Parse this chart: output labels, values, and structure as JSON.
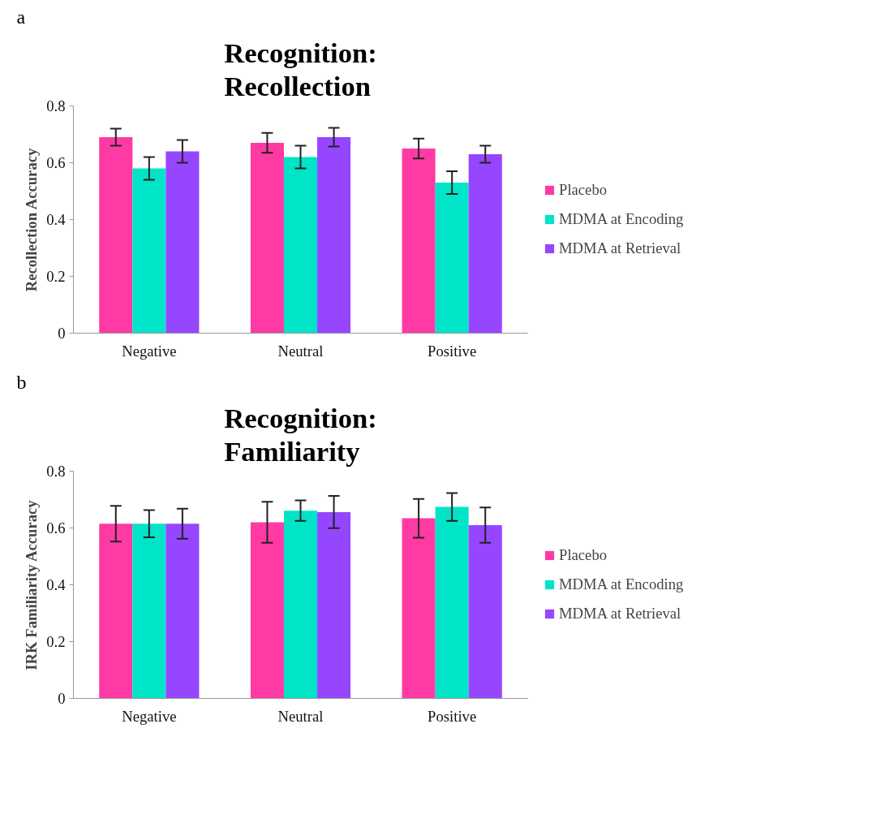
{
  "chart_data": [
    {
      "type": "bar",
      "title": "Recognition:\nRecollection",
      "ylabel": "Recollection Accuracy",
      "annotations": [
        "a"
      ],
      "categories": [
        "Negative",
        "Neutral",
        "Positive"
      ],
      "series": [
        {
          "name": "Placebo",
          "color": "#ff3aa4",
          "values": [
            0.69,
            0.67,
            0.65
          ],
          "errors": [
            0.03,
            0.035,
            0.035
          ]
        },
        {
          "name": "MDMA at Encoding",
          "color": "#00e4c8",
          "values": [
            0.58,
            0.62,
            0.53
          ],
          "errors": [
            0.04,
            0.04,
            0.04
          ]
        },
        {
          "name": "MDMA at Retrieval",
          "color": "#9646ff",
          "values": [
            0.64,
            0.69,
            0.63
          ],
          "errors": [
            0.04,
            0.033,
            0.03
          ]
        }
      ],
      "ylim": [
        0,
        0.8
      ],
      "yticks": [
        0,
        0.2,
        0.4,
        0.6,
        0.8
      ],
      "grid": false,
      "legend": "right"
    },
    {
      "type": "bar",
      "title": "Recognition:\nFamiliarity",
      "ylabel": "IRK Familiarity Accuracy",
      "annotations": [
        "b"
      ],
      "categories": [
        "Negative",
        "Neutral",
        "Positive"
      ],
      "series": [
        {
          "name": "Placebo",
          "color": "#ff3aa4",
          "values": [
            0.615,
            0.62,
            0.634
          ],
          "errors": [
            0.063,
            0.072,
            0.068
          ]
        },
        {
          "name": "MDMA at Encoding",
          "color": "#00e4c8",
          "values": [
            0.615,
            0.661,
            0.674
          ],
          "errors": [
            0.048,
            0.036,
            0.049
          ]
        },
        {
          "name": "MDMA at Retrieval",
          "color": "#9646ff",
          "values": [
            0.615,
            0.656,
            0.61
          ],
          "errors": [
            0.053,
            0.057,
            0.062
          ]
        }
      ],
      "ylim": [
        0,
        0.8
      ],
      "yticks": [
        0,
        0.2,
        0.4,
        0.6,
        0.8
      ],
      "grid": false,
      "legend": "right"
    }
  ]
}
